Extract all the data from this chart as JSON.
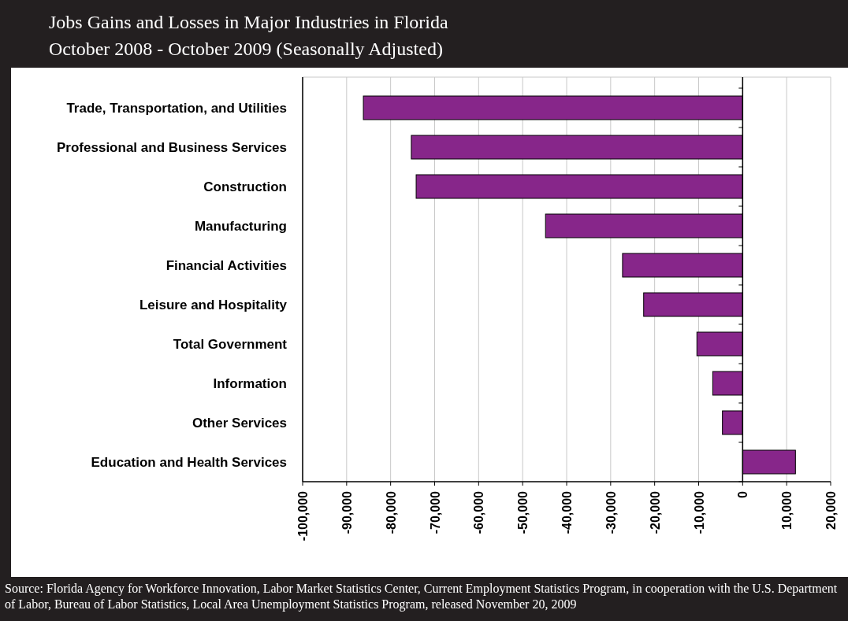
{
  "chart_data": {
    "type": "bar",
    "orientation": "horizontal",
    "title": "Jobs Gains and Losses in Major Industries in Florida",
    "subtitle": "October 2008 - October 2009 (Seasonally Adjusted)",
    "categories": [
      "Trade, Transportation, and Utilities",
      "Professional and Business Services",
      "Construction",
      "Manufacturing",
      "Financial Activities",
      "Leisure and Hospitality",
      "Total Government",
      "Information",
      "Other Services",
      "Education and Health Services"
    ],
    "values": [
      -86200,
      -75300,
      -74200,
      -44800,
      -27300,
      -22500,
      -10400,
      -6800,
      -4600,
      12000
    ],
    "color": "#87268a",
    "xlim": [
      -100000,
      20000
    ],
    "xticks": [
      {
        "value": -100000,
        "label": "-100,000"
      },
      {
        "value": -90000,
        "label": "-90,000"
      },
      {
        "value": -80000,
        "label": "-80,000"
      },
      {
        "value": -70000,
        "label": "-70,000"
      },
      {
        "value": -60000,
        "label": "-60,000"
      },
      {
        "value": -50000,
        "label": "-50,000"
      },
      {
        "value": -40000,
        "label": "-40,000"
      },
      {
        "value": -30000,
        "label": "-30,000"
      },
      {
        "value": -20000,
        "label": "-20,000"
      },
      {
        "value": -10000,
        "label": "-10,000"
      },
      0,
      {
        "value": 10000,
        "label": "10,000"
      },
      {
        "value": 20000,
        "label": "20,000"
      }
    ],
    "grid": "x",
    "annotations": [
      "Source: Florida Agency for Workforce Innovation, Labor Market Statistics Center, Current Employment Statistics Program, in cooperation with the U.S. Department of Labor, Bureau of Labor Statistics, Local Area Unemployment Statistics Program, released November 20, 2009"
    ]
  }
}
